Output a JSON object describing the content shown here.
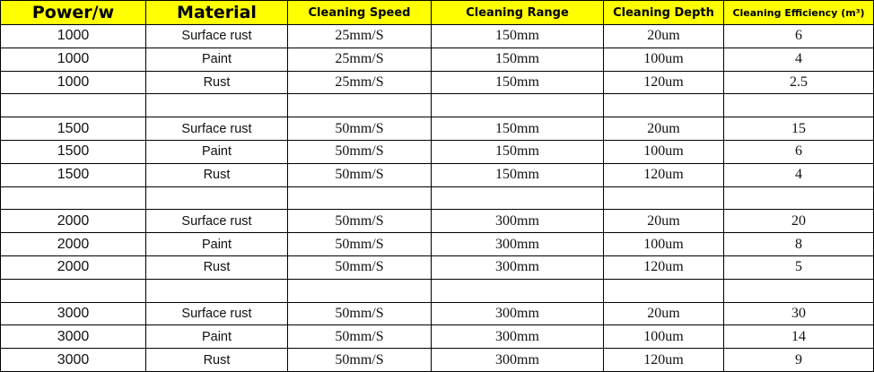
{
  "header_color": "#ffff00",
  "columns": [
    "Power/w",
    "Material",
    "Cleaning Speed",
    "Cleaning Range",
    "Cleaning Depth",
    "Cleaning Efficiency (m³)"
  ],
  "rows": [
    [
      "1000",
      "Surface rust",
      "25mm/S",
      "150mm",
      "20um",
      "6"
    ],
    [
      "1000",
      "Paint",
      "25mm/S",
      "150mm",
      "100um",
      "4"
    ],
    [
      "1000",
      "Rust",
      "25mm/S",
      "150mm",
      "120um",
      "2.5"
    ],
    [
      "",
      "",
      "",
      "",
      "",
      ""
    ],
    [
      "1500",
      "Surface rust",
      "50mm/S",
      "150mm",
      "20um",
      "15"
    ],
    [
      "1500",
      "Paint",
      "50mm/S",
      "150mm",
      "100um",
      "6"
    ],
    [
      "1500",
      "Rust",
      "50mm/S",
      "150mm",
      "120um",
      "4"
    ],
    [
      "",
      "",
      "",
      "",
      "",
      ""
    ],
    [
      "2000",
      "Surface rust",
      "50mm/S",
      "300mm",
      "20um",
      "20"
    ],
    [
      "2000",
      "Paint",
      "50mm/S",
      "300mm",
      "100um",
      "8"
    ],
    [
      "2000",
      "Rust",
      "50mm/S",
      "300mm",
      "120um",
      "5"
    ],
    [
      "",
      "",
      "",
      "",
      "",
      ""
    ],
    [
      "3000",
      "Surface rust",
      "50mm/S",
      "300mm",
      "20um",
      "30"
    ],
    [
      "3000",
      "Paint",
      "50mm/S",
      "300mm",
      "100um",
      "14"
    ],
    [
      "3000",
      "Rust",
      "50mm/S",
      "300mm",
      "120um",
      "9"
    ]
  ]
}
